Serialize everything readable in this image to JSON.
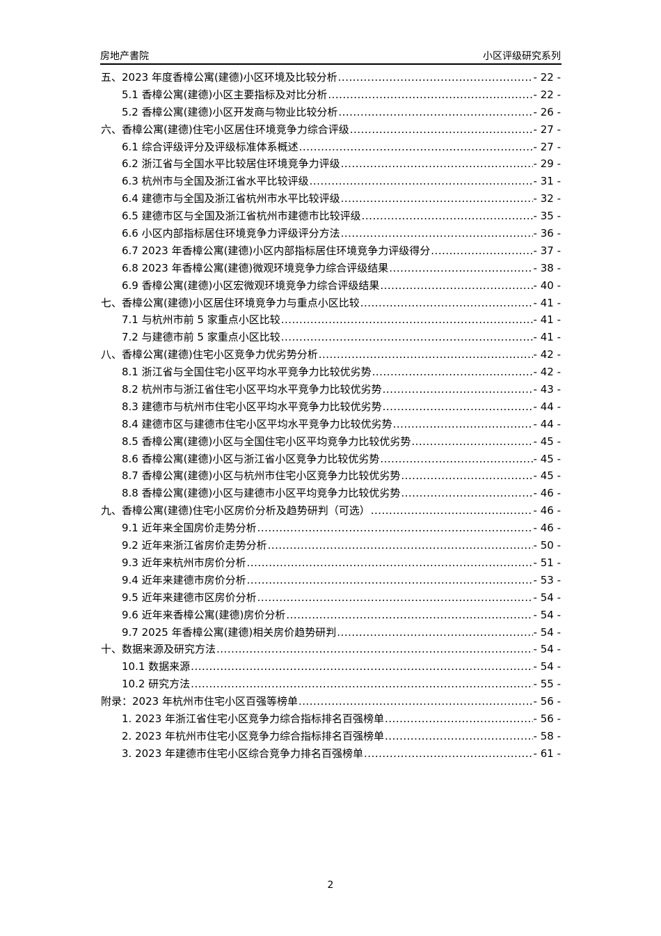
{
  "header": {
    "left": "房地产書院",
    "right": "小区评级研究系列"
  },
  "toc": [
    {
      "level": 1,
      "label": "五、2023 年度香樟公寓(建德)小区环境及比较分析",
      "page": "- 22 -"
    },
    {
      "level": 2,
      "label": "5.1 香樟公寓(建德)小区主要指标及对比分析",
      "page": "- 22 -"
    },
    {
      "level": 2,
      "label": "5.2 香樟公寓(建德)小区开发商与物业比较分析",
      "page": "- 26 -"
    },
    {
      "level": 1,
      "label": "六、香樟公寓(建德)住宅小区居住环境竞争力综合评级",
      "page": "- 27 -"
    },
    {
      "level": 2,
      "label": "6.1 综合评级评分及评级标准体系概述",
      "page": "- 27 -"
    },
    {
      "level": 2,
      "label": "6.2 浙江省与全国水平比较居住环境竞争力评级",
      "page": "- 29 -"
    },
    {
      "level": 2,
      "label": "6.3 杭州市与全国及浙江省水平比较评级",
      "page": "- 31 -"
    },
    {
      "level": 2,
      "label": "6.4 建德市与全国及浙江省杭州市水平比较评级",
      "page": "- 32 -"
    },
    {
      "level": 2,
      "label": "6.5 建德市区与全国及浙江省杭州市建德市比较评级",
      "page": "- 35 -"
    },
    {
      "level": 2,
      "label": "6.6 小区内部指标居住环境竞争力评级评分方法",
      "page": "- 36 -"
    },
    {
      "level": 2,
      "label": "6.7 2023 年香樟公寓(建德)小区内部指标居住环境竞争力评级得分",
      "page": "- 37 -"
    },
    {
      "level": 2,
      "label": "6.8 2023 年香樟公寓(建德)微观环境竞争力综合评级结果",
      "page": "- 38 -"
    },
    {
      "level": 2,
      "label": "6.9 香樟公寓(建德)小区宏微观环境竞争力综合评级结果",
      "page": "- 40 -"
    },
    {
      "level": 1,
      "label": "七、香樟公寓(建德)小区居住环境竞争力与重点小区比较",
      "page": "- 41 -"
    },
    {
      "level": 2,
      "label": "7.1 与杭州市前 5 家重点小区比较",
      "page": "- 41 -"
    },
    {
      "level": 2,
      "label": "7.2 与建德市前 5 家重点小区比较",
      "page": "- 41 -"
    },
    {
      "level": 1,
      "label": "八、香樟公寓(建德)住宅小区竞争力优劣势分析",
      "page": "- 42 -"
    },
    {
      "level": 2,
      "label": "8.1 浙江省与全国住宅小区平均水平竞争力比较优劣势",
      "page": "- 42 -"
    },
    {
      "level": 2,
      "label": "8.2 杭州市与浙江省住宅小区平均水平竞争力比较优劣势",
      "page": "- 43 -"
    },
    {
      "level": 2,
      "label": "8.3 建德市与杭州市住宅小区平均水平竞争力比较优劣势",
      "page": "- 44 -"
    },
    {
      "level": 2,
      "label": "8.4 建德市区与建德市住宅小区平均水平竞争力比较优劣势",
      "page": "- 44 -"
    },
    {
      "level": 2,
      "label": "8.5 香樟公寓(建德)小区与全国住宅小区平均竞争力比较优劣势",
      "page": "- 45 -"
    },
    {
      "level": 2,
      "label": "8.6 香樟公寓(建德)小区与浙江省小区竞争力比较优劣势",
      "page": "- 45 -"
    },
    {
      "level": 2,
      "label": "8.7 香樟公寓(建德)小区与杭州市住宅小区竞争力比较优劣势",
      "page": "- 45 -"
    },
    {
      "level": 2,
      "label": "8.8 香樟公寓(建德)小区与建德市小区平均竞争力比较优劣势",
      "page": "- 46 -"
    },
    {
      "level": 1,
      "label": "九、香樟公寓(建德)住宅小区房价分析及趋势研判（可选）",
      "page": "- 46 -"
    },
    {
      "level": 2,
      "label": "9.1 近年来全国房价走势分析",
      "page": "- 46 -"
    },
    {
      "level": 2,
      "label": "9.2 近年来浙江省房价走势分析",
      "page": "- 50 -"
    },
    {
      "level": 2,
      "label": "9.3 近年来杭州市房价分析",
      "page": "- 51 -"
    },
    {
      "level": 2,
      "label": "9.4 近年来建德市房价分析",
      "page": "- 53 -"
    },
    {
      "level": 2,
      "label": "9.5 近年来建德市区房价分析",
      "page": "- 54 -"
    },
    {
      "level": 2,
      "label": "9.6 近年来香樟公寓(建德)房价分析",
      "page": "- 54 -"
    },
    {
      "level": 2,
      "label": "9.7 2025 年香樟公寓(建德)相关房价趋势研判",
      "page": "- 54 -"
    },
    {
      "level": 1,
      "label": "十、数据来源及研究方法",
      "page": "- 54 -"
    },
    {
      "level": 2,
      "label": "10.1 数据来源",
      "page": "- 54 -"
    },
    {
      "level": 2,
      "label": "10.2 研究方法",
      "page": "- 55 -"
    },
    {
      "level": 1,
      "label": "附录：2023 年杭州市住宅小区百强等榜单",
      "page": "- 56 -"
    },
    {
      "level": 2,
      "label": "1. 2023 年浙江省住宅小区竞争力综合指标排名百强榜单",
      "page": "- 56 -"
    },
    {
      "level": 2,
      "label": "2. 2023 年杭州市住宅小区竞争力综合指标排名百强榜单",
      "page": "- 58 -"
    },
    {
      "level": 2,
      "label": "3. 2023 年建德市住宅小区综合竞争力排名百强榜单",
      "page": "- 61 -"
    }
  ],
  "page_number": "2"
}
